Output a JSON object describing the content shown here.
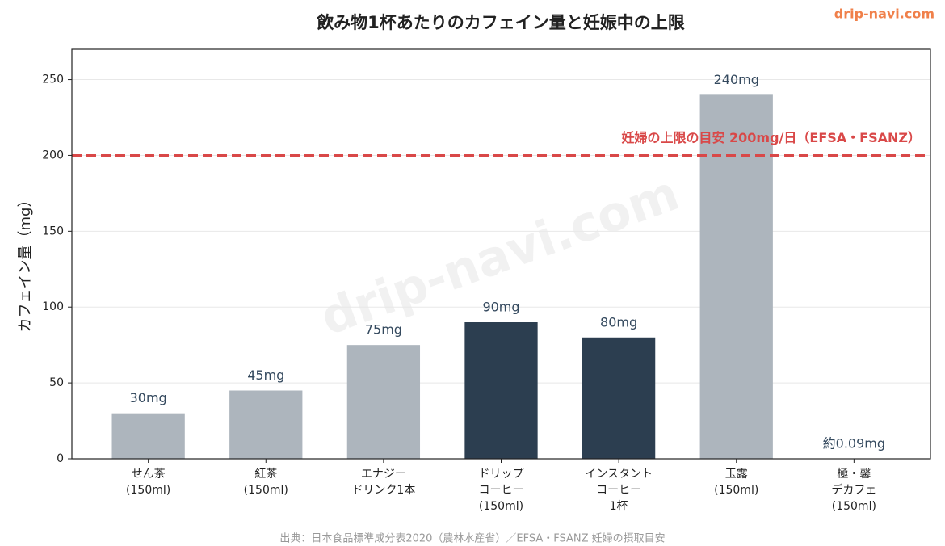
{
  "chart_data": {
    "type": "bar",
    "title": "飲み物1杯あたりのカフェイン量と妊娠中の上限",
    "brand": "drip-navi.com",
    "watermark": "drip-navi.com",
    "source": "出典：日本食品標準成分表2020（農林水産省）／EFSA・FSANZ 妊婦の摂取目安",
    "y_label": "カフェイン量（mg）",
    "categories": [
      [
        "せん茶",
        "(150ml)"
      ],
      [
        "紅茶",
        "(150ml)"
      ],
      [
        "エナジー",
        "ドリンク1本"
      ],
      [
        "ドリップ",
        "コーヒー",
        "(150ml)"
      ],
      [
        "インスタント",
        "コーヒー",
        "1杯"
      ],
      [
        "玉露",
        "(150ml)"
      ],
      [
        "極・馨",
        "デカフェ",
        "(150ml)"
      ]
    ],
    "values": [
      30,
      45,
      75,
      90,
      80,
      240,
      0.09
    ],
    "value_labels": [
      "30mg",
      "45mg",
      "75mg",
      "90mg",
      "80mg",
      "240mg",
      "約0.09mg"
    ],
    "colors": [
      "#adb5bd",
      "#adb5bd",
      "#adb5bd",
      "#2c3e50",
      "#2c3e50",
      "#adb5bd",
      "#adb5bd"
    ],
    "reference_line": {
      "value": 200,
      "label": "妊婦の上限の目安 200mg/日（EFSA・FSANZ）",
      "color": "#d94848"
    },
    "ylim": [
      0,
      270
    ],
    "yticks": [
      0,
      50,
      100,
      150,
      200,
      250
    ],
    "grid": true
  }
}
